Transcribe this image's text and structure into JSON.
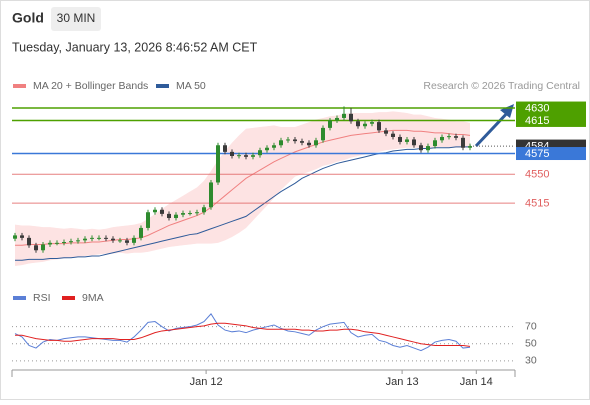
{
  "header": {
    "title": "Gold",
    "timeframe": "30 MIN",
    "timestamp": "Tuesday, January 13, 2026 8:46:52 AM CET"
  },
  "chart_data": [
    {
      "type": "candlestick",
      "source": "Research © 2026 Trading Central",
      "xlim": [
        -0.43,
        71.43
      ],
      "ylim": [
        4416,
        4676
      ],
      "xticks": [
        {
          "value": 27.3,
          "label": "Jan 12"
        },
        {
          "value": 55.3,
          "label": "Jan 13"
        },
        {
          "value": 65.9,
          "label": "Jan 14"
        }
      ],
      "up_color": "#2e8b2e",
      "down_color": "#3a3a3a",
      "open": [
        4472,
        4476,
        4473,
        4464,
        4458,
        4465,
        4467,
        4467,
        4468,
        4469,
        4470,
        4472,
        4473,
        4473,
        4472,
        4470,
        4470,
        4467,
        4473,
        4485,
        4504,
        4507,
        4502,
        4497,
        4501,
        4503,
        4503,
        4504,
        4510,
        4540,
        4585,
        4577,
        4572,
        4573,
        4571,
        4573,
        4579,
        4582,
        4585,
        4591,
        4592,
        4590,
        4588,
        4585,
        4591,
        4606,
        4615,
        4618,
        4623,
        4614,
        4608,
        4611,
        4613,
        4603,
        4599,
        4595,
        4589,
        4592,
        4585,
        4579,
        4584,
        4591,
        4595,
        4596,
        4594,
        4582
      ],
      "high": [
        4479,
        4479,
        4476,
        4467,
        4468,
        4470,
        4470,
        4471,
        4472,
        4473,
        4475,
        4476,
        4476,
        4476,
        4475,
        4473,
        4473,
        4476,
        4488,
        4507,
        4510,
        4510,
        4505,
        4504,
        4506,
        4506,
        4507,
        4513,
        4543,
        4588,
        4588,
        4580,
        4576,
        4576,
        4576,
        4582,
        4585,
        4588,
        4594,
        4595,
        4595,
        4593,
        4591,
        4594,
        4609,
        4618,
        4621,
        4632,
        4630,
        4617,
        4614,
        4616,
        4616,
        4606,
        4602,
        4598,
        4595,
        4595,
        4588,
        4587,
        4594,
        4598,
        4599,
        4599,
        4597,
        4587
      ],
      "low": [
        4469,
        4470,
        4461,
        4455,
        4455,
        4462,
        4464,
        4464,
        4465,
        4466,
        4467,
        4469,
        4470,
        4469,
        4467,
        4467,
        4464,
        4464,
        4470,
        4482,
        4501,
        4499,
        4494,
        4494,
        4498,
        4500,
        4500,
        4501,
        4507,
        4537,
        4574,
        4569,
        4569,
        4568,
        4568,
        4570,
        4576,
        4579,
        4582,
        4588,
        4587,
        4585,
        4582,
        4582,
        4588,
        4603,
        4612,
        4615,
        4611,
        4605,
        4605,
        4608,
        4600,
        4596,
        4592,
        4586,
        4586,
        4582,
        4576,
        4576,
        4581,
        4588,
        4592,
        4591,
        4579,
        4579
      ],
      "close": [
        4476,
        4473,
        4464,
        4458,
        4465,
        4467,
        4467,
        4468,
        4469,
        4470,
        4472,
        4473,
        4473,
        4472,
        4470,
        4470,
        4467,
        4473,
        4485,
        4504,
        4507,
        4502,
        4497,
        4501,
        4503,
        4503,
        4504,
        4510,
        4540,
        4585,
        4577,
        4572,
        4573,
        4571,
        4573,
        4579,
        4582,
        4585,
        4591,
        4592,
        4590,
        4588,
        4585,
        4591,
        4606,
        4615,
        4618,
        4623,
        4614,
        4608,
        4611,
        4613,
        4603,
        4599,
        4595,
        4589,
        4592,
        4585,
        4579,
        4584,
        4591,
        4595,
        4596,
        4594,
        4582,
        4584
      ],
      "series": [
        {
          "name": "MA 20 + Bollinger Bands",
          "color": "#f08080",
          "band_color": "#fde3e3",
          "values": [
            4464,
            4464,
            4465,
            4465,
            4465,
            4466,
            4466,
            4466,
            4467,
            4467,
            4467,
            4468,
            4468,
            4469,
            4470,
            4471,
            4471,
            4472,
            4473,
            4476,
            4480,
            4484,
            4488,
            4491,
            4494,
            4497,
            4500,
            4504,
            4510,
            4517,
            4524,
            4531,
            4538,
            4545,
            4550,
            4555,
            4560,
            4565,
            4569,
            4573,
            4577,
            4580,
            4583,
            4586,
            4589,
            4591,
            4593,
            4595,
            4597,
            4598,
            4599,
            4600,
            4601,
            4602,
            4603,
            4603,
            4603,
            4602,
            4602,
            4601,
            4600,
            4600,
            4599,
            4598,
            4598,
            4597
          ],
          "upper": [
            4489,
            4488,
            4488,
            4487,
            4486,
            4486,
            4485,
            4484,
            4485,
            4484,
            4483,
            4484,
            4483,
            4484,
            4486,
            4487,
            4488,
            4489,
            4491,
            4496,
            4502,
            4508,
            4514,
            4519,
            4524,
            4529,
            4534,
            4542,
            4554,
            4567,
            4578,
            4588,
            4597,
            4605,
            4606,
            4607,
            4608,
            4609,
            4607,
            4607,
            4607,
            4610,
            4613,
            4616,
            4618,
            4620,
            4621,
            4623,
            4624,
            4624,
            4624,
            4624,
            4625,
            4625,
            4626,
            4625,
            4624,
            4622,
            4622,
            4620,
            4618,
            4617,
            4616,
            4614,
            4614,
            4612
          ],
          "lower": [
            4439,
            4440,
            4442,
            4443,
            4444,
            4446,
            4447,
            4448,
            4449,
            4450,
            4451,
            4452,
            4453,
            4454,
            4454,
            4455,
            4454,
            4455,
            4455,
            4456,
            4458,
            4460,
            4462,
            4463,
            4464,
            4465,
            4466,
            4466,
            4466,
            4467,
            4470,
            4474,
            4479,
            4485,
            4494,
            4503,
            4512,
            4521,
            4531,
            4539,
            4547,
            4550,
            4553,
            4556,
            4560,
            4562,
            4565,
            4567,
            4570,
            4572,
            4574,
            4576,
            4577,
            4579,
            4580,
            4581,
            4582,
            4582,
            4582,
            4582,
            4582,
            4583,
            4582,
            4582,
            4582,
            4582
          ]
        },
        {
          "name": "MA 50",
          "color": "#2f5b9a",
          "values": [
            4446,
            4446,
            4447,
            4447,
            4447,
            4448,
            4448,
            4449,
            4449,
            4450,
            4450,
            4451,
            4451,
            4453,
            4455,
            4457,
            4459,
            4461,
            4463,
            4465,
            4467,
            4469,
            4471,
            4473,
            4475,
            4477,
            4478,
            4481,
            4484,
            4487,
            4490,
            4493,
            4496,
            4499,
            4505,
            4511,
            4517,
            4523,
            4529,
            4534,
            4539,
            4545,
            4549,
            4553,
            4557,
            4560,
            4563,
            4565,
            4567,
            4569,
            4571,
            4573,
            4575,
            4576,
            4578,
            4579,
            4580,
            4580,
            4581,
            4581,
            4582,
            4582,
            4582,
            4583,
            4583,
            4583
          ]
        }
      ],
      "levels": [
        {
          "value": 4630,
          "color": "#4ea000",
          "style": "box"
        },
        {
          "value": 4615,
          "color": "#4ea000",
          "style": "box"
        },
        {
          "value": 4575,
          "color": "#3a78d8",
          "style": "box"
        },
        {
          "value": 4550,
          "color": "#e06060",
          "style": "text"
        },
        {
          "value": 4515,
          "color": "#e06060",
          "style": "text"
        }
      ],
      "last_price": {
        "value": 4584,
        "color": "#333333"
      }
    },
    {
      "type": "line",
      "ylim": [
        24,
        86
      ],
      "yticks": [
        70,
        50,
        30
      ],
      "series": [
        {
          "name": "RSI",
          "color": "#5b7fd6",
          "values": [
            62,
            58,
            48,
            45,
            52,
            55,
            54,
            56,
            57,
            58,
            58,
            57,
            56,
            55,
            54,
            54,
            52,
            58,
            66,
            75,
            76,
            70,
            65,
            68,
            69,
            70,
            72,
            76,
            85,
            72,
            66,
            64,
            65,
            63,
            66,
            68,
            70,
            72,
            68,
            65,
            64,
            62,
            60,
            66,
            70,
            73,
            74,
            75,
            63,
            58,
            60,
            61,
            54,
            52,
            48,
            46,
            48,
            45,
            42,
            46,
            52,
            54,
            55,
            53,
            45,
            46
          ]
        },
        {
          "name": "9MA",
          "color": "#e02020",
          "values": [
            60,
            60,
            58,
            56,
            55,
            54,
            54,
            53,
            53,
            54,
            55,
            56,
            56,
            56,
            56,
            55,
            55,
            55,
            57,
            60,
            63,
            65,
            66,
            67,
            68,
            69,
            70,
            71,
            73,
            74,
            74,
            73,
            72,
            71,
            69,
            68,
            67,
            67,
            67,
            67,
            67,
            66,
            66,
            65,
            65,
            66,
            66,
            67,
            67,
            66,
            64,
            63,
            62,
            60,
            58,
            56,
            54,
            52,
            50,
            49,
            48,
            48,
            48,
            48,
            48,
            47
          ]
        }
      ]
    }
  ]
}
